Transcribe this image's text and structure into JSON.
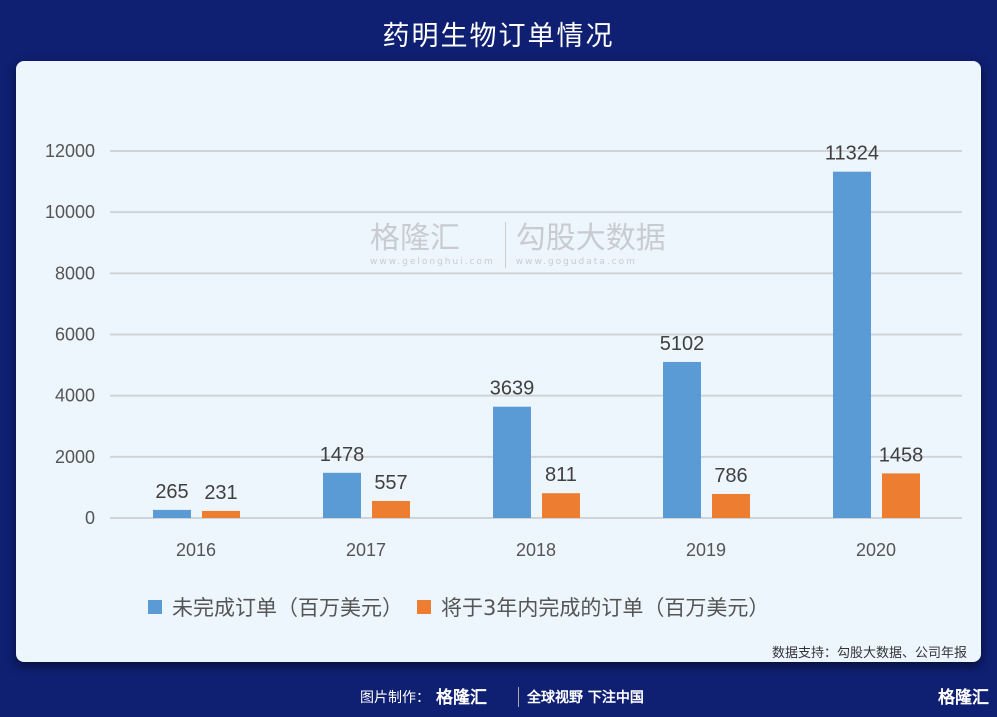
{
  "header": {
    "title": "药明生物订单情况"
  },
  "chart_data": {
    "type": "bar",
    "title": "药明生物订单情况",
    "categories": [
      "2016",
      "2017",
      "2018",
      "2019",
      "2020"
    ],
    "series": [
      {
        "name": "未完成订单（百万美元）",
        "color": "#5b9bd5",
        "values": [
          265,
          1478,
          3639,
          5102,
          11324
        ]
      },
      {
        "name": "将于3年内完成的订单（百万美元）",
        "color": "#ed7d31",
        "values": [
          231,
          557,
          811,
          786,
          1458
        ]
      }
    ],
    "yticks": [
      "0",
      "2000",
      "4000",
      "6000",
      "8000",
      "10000",
      "12000"
    ],
    "ylim": [
      0,
      12000
    ],
    "grid": true,
    "legend": "bottom",
    "xlabel": "",
    "ylabel": ""
  },
  "watermark": {
    "brand": "格隆汇",
    "brand_url": "www.gelonghui.com",
    "partner": "勾股大数据",
    "partner_url": "www.gogudata.com"
  },
  "source": "数据支持：勾股大数据、公司年报",
  "footer": {
    "credit": "图片制作：",
    "brand": "格隆汇",
    "slogan": "全球视野 下注中国",
    "corner": "格隆汇"
  }
}
